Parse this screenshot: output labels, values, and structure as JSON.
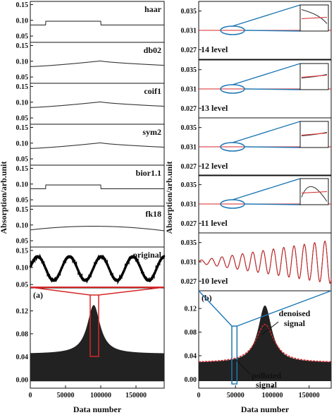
{
  "chart_data": [
    {
      "id": "wavelet-basis-comparison",
      "type": "line",
      "ylabel": "Absorption/arb.unit",
      "xlabel": "Data number",
      "x_ticks": [
        "0",
        "50000",
        "100000",
        "150000"
      ],
      "xlim": [
        0,
        190000
      ],
      "colors": {
        "trace": "#333333",
        "highlight": "#d62728"
      },
      "panels": [
        {
          "label": "haar",
          "ylim": [
            0.03,
            0.16
          ],
          "y_ticks": [
            "0.05",
            "0.10",
            "0.15"
          ],
          "kind": "step",
          "base": 0.085,
          "step": 0.097,
          "step_x": [
            22000,
            100000
          ]
        },
        {
          "label": "db02",
          "ylim": [
            0.03,
            0.16
          ],
          "y_ticks": [
            "0.05",
            "0.10",
            "0.15"
          ],
          "kind": "smooth",
          "start": 0.083,
          "peak": 0.101,
          "end": 0.087,
          "peak_x": 100000
        },
        {
          "label": "coif1",
          "ylim": [
            0.03,
            0.16
          ],
          "y_ticks": [
            "0.05",
            "0.10",
            "0.15"
          ],
          "kind": "smooth",
          "start": 0.083,
          "peak": 0.101,
          "end": 0.087,
          "peak_x": 100000
        },
        {
          "label": "sym2",
          "ylim": [
            0.03,
            0.16
          ],
          "y_ticks": [
            "0.05",
            "0.10",
            "0.15"
          ],
          "kind": "smooth",
          "start": 0.083,
          "peak": 0.101,
          "end": 0.087,
          "peak_x": 100000
        },
        {
          "label": "bior1.1",
          "ylim": [
            0.03,
            0.16
          ],
          "y_ticks": [
            "0.05",
            "0.10",
            "0.15"
          ],
          "kind": "step",
          "base": 0.085,
          "step": 0.097,
          "step_x": [
            22000,
            100000
          ]
        },
        {
          "label": "fk18",
          "ylim": [
            0.03,
            0.16
          ],
          "y_ticks": [
            "0.05",
            "0.10",
            "0.15"
          ],
          "kind": "arc",
          "start": 0.083,
          "peak": 0.096,
          "end": 0.085,
          "peak_x": 90000
        },
        {
          "label": "original",
          "ylim": [
            0.04,
            0.16
          ],
          "y_ticks": [
            "0.05",
            "0.10",
            "0.15"
          ],
          "kind": "sine",
          "center": 0.097,
          "amplitude": 0.035,
          "period": 45000,
          "phase": 0.1
        }
      ],
      "bottom": {
        "label": "(a)",
        "ylim": [
          -0.015,
          0.16
        ],
        "y_ticks": [
          "0.00",
          "0.04",
          "0.08",
          "0.12"
        ],
        "peak_center": 90000,
        "peak_height": 0.13,
        "floor": 0.045,
        "zoom_x": [
          85000,
          97000
        ]
      }
    },
    {
      "id": "decomposition-level-comparison",
      "type": "line",
      "ylabel": "Absorption/arb.unit",
      "xlabel": "Data number",
      "x_ticks": [
        "0",
        "50000",
        "100000",
        "150000"
      ],
      "xlim": [
        0,
        180000
      ],
      "colors": {
        "trace": "#333333",
        "denoised": "#d62728",
        "callout": "#1f77b4"
      },
      "panels": [
        {
          "label": "14 level",
          "ylim": [
            0.025,
            0.037
          ],
          "y_ticks": [
            "0.027",
            "0.031",
            "0.035"
          ],
          "kind": "flat",
          "value": 0.031,
          "inset": "divergent"
        },
        {
          "label": "13 level",
          "ylim": [
            0.025,
            0.037
          ],
          "y_ticks": [
            "0.027",
            "0.031",
            "0.035"
          ],
          "kind": "flat",
          "value": 0.031,
          "inset": "converge"
        },
        {
          "label": "12 level",
          "ylim": [
            0.025,
            0.037
          ],
          "y_ticks": [
            "0.027",
            "0.031",
            "0.035"
          ],
          "kind": "flat",
          "value": 0.031,
          "inset": "converge"
        },
        {
          "label": "11 level",
          "ylim": [
            0.025,
            0.037
          ],
          "y_ticks": [
            "0.027",
            "0.031",
            "0.035"
          ],
          "kind": "flat",
          "value": 0.031,
          "inset": "oscillate"
        },
        {
          "label": "10 level",
          "ylim": [
            0.025,
            0.037
          ],
          "y_ticks": [
            "0.027",
            "0.031",
            "0.035"
          ],
          "kind": "growing",
          "value": 0.031,
          "amp_start": 0.0003,
          "amp_end": 0.0045,
          "period": 14000
        }
      ],
      "bottom": {
        "label": "(b)",
        "ylim": [
          -0.015,
          0.15
        ],
        "y_ticks": [
          "0.00",
          "0.04",
          "0.08",
          "0.12"
        ],
        "peak_center": 90000,
        "peak_height": 0.125,
        "floor": 0.028,
        "zoom_x": [
          45000,
          52000
        ],
        "annotations": [
          "denoised",
          "signal",
          "polluted",
          "signal"
        ]
      }
    }
  ]
}
